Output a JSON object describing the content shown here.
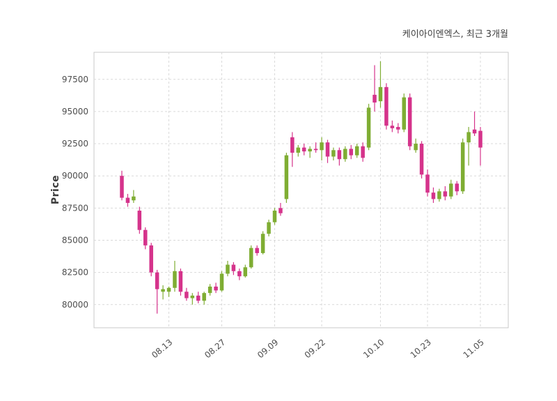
{
  "chart": {
    "title": "케이아이엔엑스, 최근 3개월",
    "ylabel": "Price"
  },
  "chart_data": {
    "type": "candlestick",
    "title": "케이아이엔엑스, 최근 3개월",
    "ylabel": "Price",
    "xlabel": "",
    "grid": "dashed",
    "legend": "none",
    "ylim": [
      78200,
      99600
    ],
    "y_ticks": [
      80000,
      82500,
      85000,
      87500,
      90000,
      92500,
      95000,
      97500
    ],
    "x_tick_labels": [
      "08.13",
      "08.27",
      "09.09",
      "09.22",
      "10.10",
      "10.23",
      "11.05"
    ],
    "x_tick_indices": [
      8,
      17,
      26,
      34,
      44,
      52,
      61
    ],
    "colors": {
      "up": "#7fad33",
      "down": "#d5338b",
      "grid": "#d9d9d9",
      "axis_border": "#c9c9c9",
      "text": "#4d4d4d",
      "background": "#ffffff"
    },
    "candle_format": [
      "open",
      "high",
      "low",
      "close"
    ],
    "candles": [
      [
        90000,
        90400,
        88100,
        88300
      ],
      [
        88300,
        88600,
        87600,
        87900
      ],
      [
        88100,
        88900,
        87900,
        88400
      ],
      [
        87300,
        87600,
        85500,
        85800
      ],
      [
        85800,
        86000,
        84300,
        84600
      ],
      [
        84600,
        84800,
        82200,
        82500
      ],
      [
        82500,
        82700,
        79300,
        81200
      ],
      [
        81000,
        81500,
        80400,
        81200
      ],
      [
        81000,
        81400,
        80600,
        81300
      ],
      [
        81300,
        83400,
        81000,
        82600
      ],
      [
        82600,
        82800,
        80700,
        81000
      ],
      [
        81000,
        81300,
        80300,
        80500
      ],
      [
        80500,
        80900,
        80000,
        80700
      ],
      [
        80700,
        81000,
        80100,
        80300
      ],
      [
        80300,
        81000,
        80000,
        80900
      ],
      [
        80900,
        81600,
        80700,
        81400
      ],
      [
        81400,
        81700,
        80900,
        81100
      ],
      [
        81100,
        82600,
        81000,
        82400
      ],
      [
        82400,
        83400,
        82200,
        83100
      ],
      [
        83100,
        83300,
        82300,
        82600
      ],
      [
        82600,
        82800,
        81900,
        82200
      ],
      [
        82200,
        83100,
        82100,
        82900
      ],
      [
        82900,
        84600,
        82800,
        84400
      ],
      [
        84400,
        84600,
        83800,
        84000
      ],
      [
        84000,
        85700,
        83900,
        85500
      ],
      [
        85500,
        86600,
        85300,
        86400
      ],
      [
        86400,
        87500,
        86200,
        87300
      ],
      [
        87500,
        87900,
        86900,
        87100
      ],
      [
        88200,
        91800,
        87900,
        91600
      ],
      [
        93000,
        93400,
        90700,
        91800
      ],
      [
        91800,
        92400,
        91500,
        92200
      ],
      [
        92200,
        92500,
        91600,
        91900
      ],
      [
        91900,
        92300,
        91400,
        92100
      ],
      [
        92100,
        92600,
        91800,
        92000
      ],
      [
        92000,
        93000,
        91200,
        92600
      ],
      [
        92600,
        92800,
        91000,
        91500
      ],
      [
        91500,
        92200,
        91200,
        92000
      ],
      [
        92000,
        92200,
        90800,
        91300
      ],
      [
        91300,
        92300,
        91100,
        92100
      ],
      [
        92100,
        92400,
        91300,
        91600
      ],
      [
        91600,
        92500,
        91400,
        92300
      ],
      [
        92300,
        92600,
        91100,
        91400
      ],
      [
        92200,
        95600,
        92000,
        95300
      ],
      [
        96300,
        98600,
        95000,
        95700
      ],
      [
        95800,
        98900,
        95300,
        96900
      ],
      [
        96900,
        97200,
        93600,
        93900
      ],
      [
        93900,
        94300,
        93400,
        93700
      ],
      [
        93800,
        94100,
        93300,
        93600
      ],
      [
        93600,
        96400,
        93400,
        96100
      ],
      [
        96100,
        96400,
        92000,
        92300
      ],
      [
        92000,
        92900,
        91800,
        92500
      ],
      [
        92500,
        92700,
        89800,
        90100
      ],
      [
        90100,
        90500,
        88400,
        88700
      ],
      [
        88700,
        89100,
        87900,
        88200
      ],
      [
        88200,
        89000,
        88000,
        88800
      ],
      [
        88800,
        89200,
        88100,
        88400
      ],
      [
        88400,
        89700,
        88200,
        89400
      ],
      [
        89400,
        89600,
        88500,
        88800
      ],
      [
        88800,
        92900,
        88600,
        92600
      ],
      [
        92600,
        93800,
        90800,
        93400
      ],
      [
        93600,
        95000,
        93100,
        93300
      ],
      [
        93500,
        93800,
        90800,
        92200
      ]
    ]
  }
}
